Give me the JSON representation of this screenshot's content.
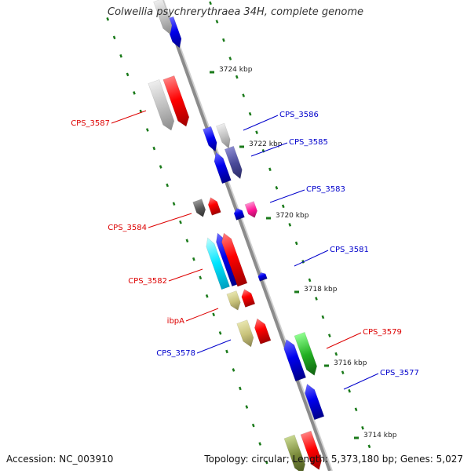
{
  "title": "Colwellia psychrerythraea 34H, complete genome",
  "footer": {
    "accession": "Accession: NC_003910",
    "topology": "Topology: circular; Length: 5,373,180 bp; Genes: 5,027"
  },
  "colors": {
    "forward_label": "#dd0000",
    "reverse_label": "#0000cc",
    "backbone": "#8c8c8c",
    "tick": "#1a7a1a"
  },
  "scale_ticks": [
    "3724 kbp",
    "3722 kbp",
    "3720 kbp",
    "3718 kbp",
    "3716 kbp",
    "3714 kbp"
  ],
  "gene_labels": [
    {
      "text": "CPS_3587",
      "strand": "forward"
    },
    {
      "text": "CPS_3586",
      "strand": "reverse"
    },
    {
      "text": "CPS_3585",
      "strand": "reverse"
    },
    {
      "text": "CPS_3584",
      "strand": "forward"
    },
    {
      "text": "CPS_3583",
      "strand": "reverse"
    },
    {
      "text": "CPS_3582",
      "strand": "forward"
    },
    {
      "text": "CPS_3581",
      "strand": "reverse"
    },
    {
      "text": "ibpA",
      "strand": "forward"
    },
    {
      "text": "CPS_3579",
      "strand": "forward"
    },
    {
      "text": "CPS_3578",
      "strand": "reverse"
    },
    {
      "text": "CPS_3577",
      "strand": "reverse"
    }
  ]
}
